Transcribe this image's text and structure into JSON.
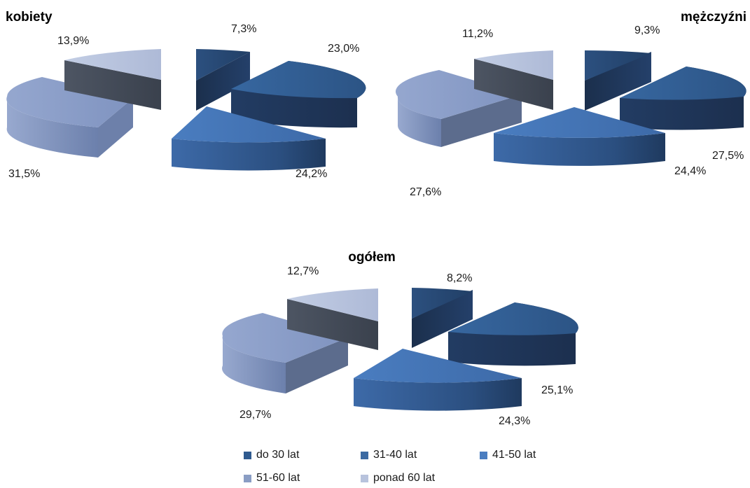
{
  "colors": {
    "c1": "#2f5a8f",
    "c2": "#3b6aa2",
    "c3": "#4a7dc0",
    "c4": "#8a9dc4",
    "c5": "#b8c3dd"
  },
  "legend": [
    {
      "label": "do 30 lat",
      "color_key": "c1"
    },
    {
      "label": "31-40 lat",
      "color_key": "c2"
    },
    {
      "label": "41-50 lat",
      "color_key": "c3"
    },
    {
      "label": "51-60 lat",
      "color_key": "c4"
    },
    {
      "label": "ponad 60 lat",
      "color_key": "c5"
    }
  ],
  "chart_data": [
    {
      "type": "pie",
      "title": "kobiety",
      "categories": [
        "do 30 lat",
        "31-40 lat",
        "41-50 lat",
        "51-60 lat",
        "ponad 60 lat"
      ],
      "values": [
        7.3,
        23.0,
        24.2,
        31.5,
        13.9
      ],
      "labels": [
        "7,3%",
        "23,0%",
        "24,2%",
        "31,5%",
        "13,9%"
      ],
      "style": "3d-exploded",
      "legend": "bottom"
    },
    {
      "type": "pie",
      "title": "mężczyźni",
      "categories": [
        "do 30 lat",
        "31-40 lat",
        "41-50 lat",
        "51-60 lat",
        "ponad 60 lat"
      ],
      "values": [
        9.3,
        27.5,
        24.4,
        27.6,
        11.2
      ],
      "labels": [
        "9,3%",
        "27,5%",
        "24,4%",
        "27,6%",
        "11,2%"
      ],
      "style": "3d-exploded",
      "legend": "bottom"
    },
    {
      "type": "pie",
      "title": "ogółem",
      "categories": [
        "do 30 lat",
        "31-40 lat",
        "41-50 lat",
        "51-60 lat",
        "ponad 60 lat"
      ],
      "values": [
        8.2,
        25.1,
        24.3,
        29.7,
        12.7
      ],
      "labels": [
        "8,2%",
        "25,1%",
        "24,3%",
        "29,7%",
        "12,7%"
      ],
      "style": "3d-exploded",
      "legend": "bottom"
    }
  ]
}
